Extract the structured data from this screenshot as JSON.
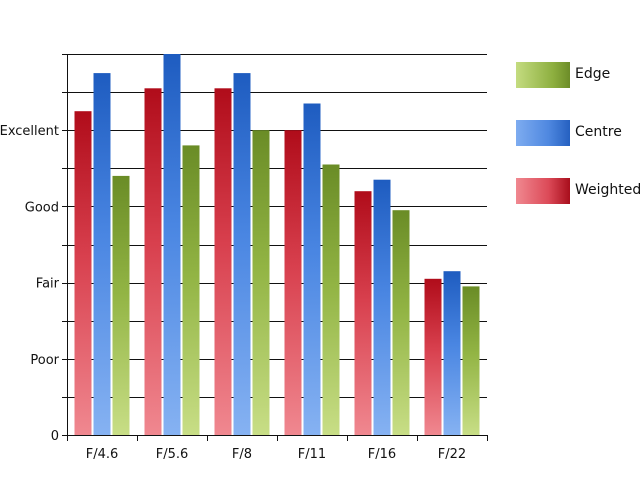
{
  "chart_data": {
    "type": "bar",
    "title": "",
    "xlabel": "",
    "ylabel": "",
    "categories": [
      "F/4.6",
      "F/5.6",
      "F/8",
      "F/11",
      "F/16",
      "F/22"
    ],
    "ylim": [
      0,
      10
    ],
    "y_tick_values": [
      0,
      2,
      4,
      6,
      8
    ],
    "y_tick_labels": [
      "0",
      "Poor",
      "Fair",
      "Good",
      "Excellent"
    ],
    "grid": "horizontal",
    "legend_position": "right",
    "series": [
      {
        "name": "Weighted",
        "values": [
          8.5,
          9.1,
          9.1,
          8.0,
          6.4,
          4.1
        ],
        "color": "#c8101e"
      },
      {
        "name": "Centre",
        "values": [
          9.5,
          10.0,
          9.5,
          8.7,
          6.7,
          4.3
        ],
        "color": "#2a68c8"
      },
      {
        "name": "Edge",
        "values": [
          6.8,
          7.6,
          8.0,
          7.1,
          5.9,
          3.9
        ],
        "color": "#7c9c2c"
      }
    ],
    "legend": [
      "Edge",
      "Centre",
      "Weighted"
    ]
  }
}
